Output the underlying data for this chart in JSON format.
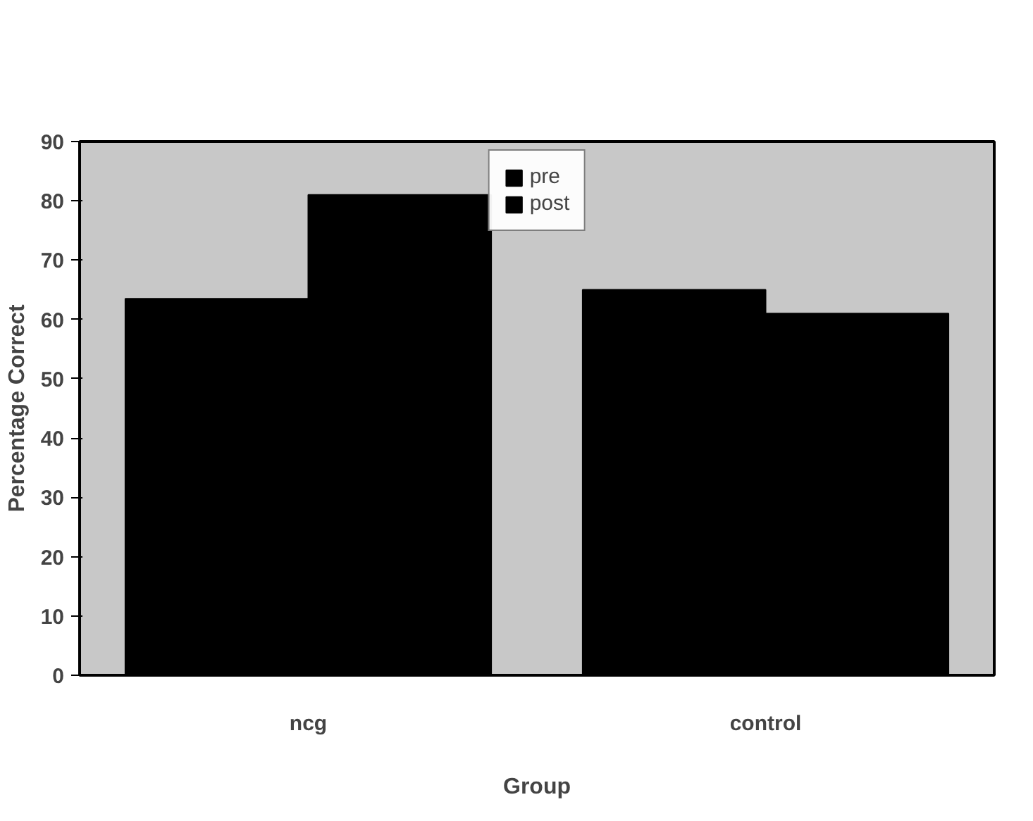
{
  "chart_data": {
    "type": "bar",
    "xlabel": "Group",
    "ylabel": "Percentage Correct",
    "categories": [
      "ncg",
      "control"
    ],
    "series": [
      {
        "name": "pre",
        "color": "#000000",
        "values": [
          63.5,
          65
        ]
      },
      {
        "name": "post",
        "color": "#000000",
        "values": [
          81,
          61
        ]
      }
    ],
    "ylim": [
      0,
      90
    ],
    "yticks": [
      0,
      10,
      20,
      30,
      40,
      50,
      60,
      70,
      80,
      90
    ],
    "grid": false,
    "legend": "top"
  }
}
